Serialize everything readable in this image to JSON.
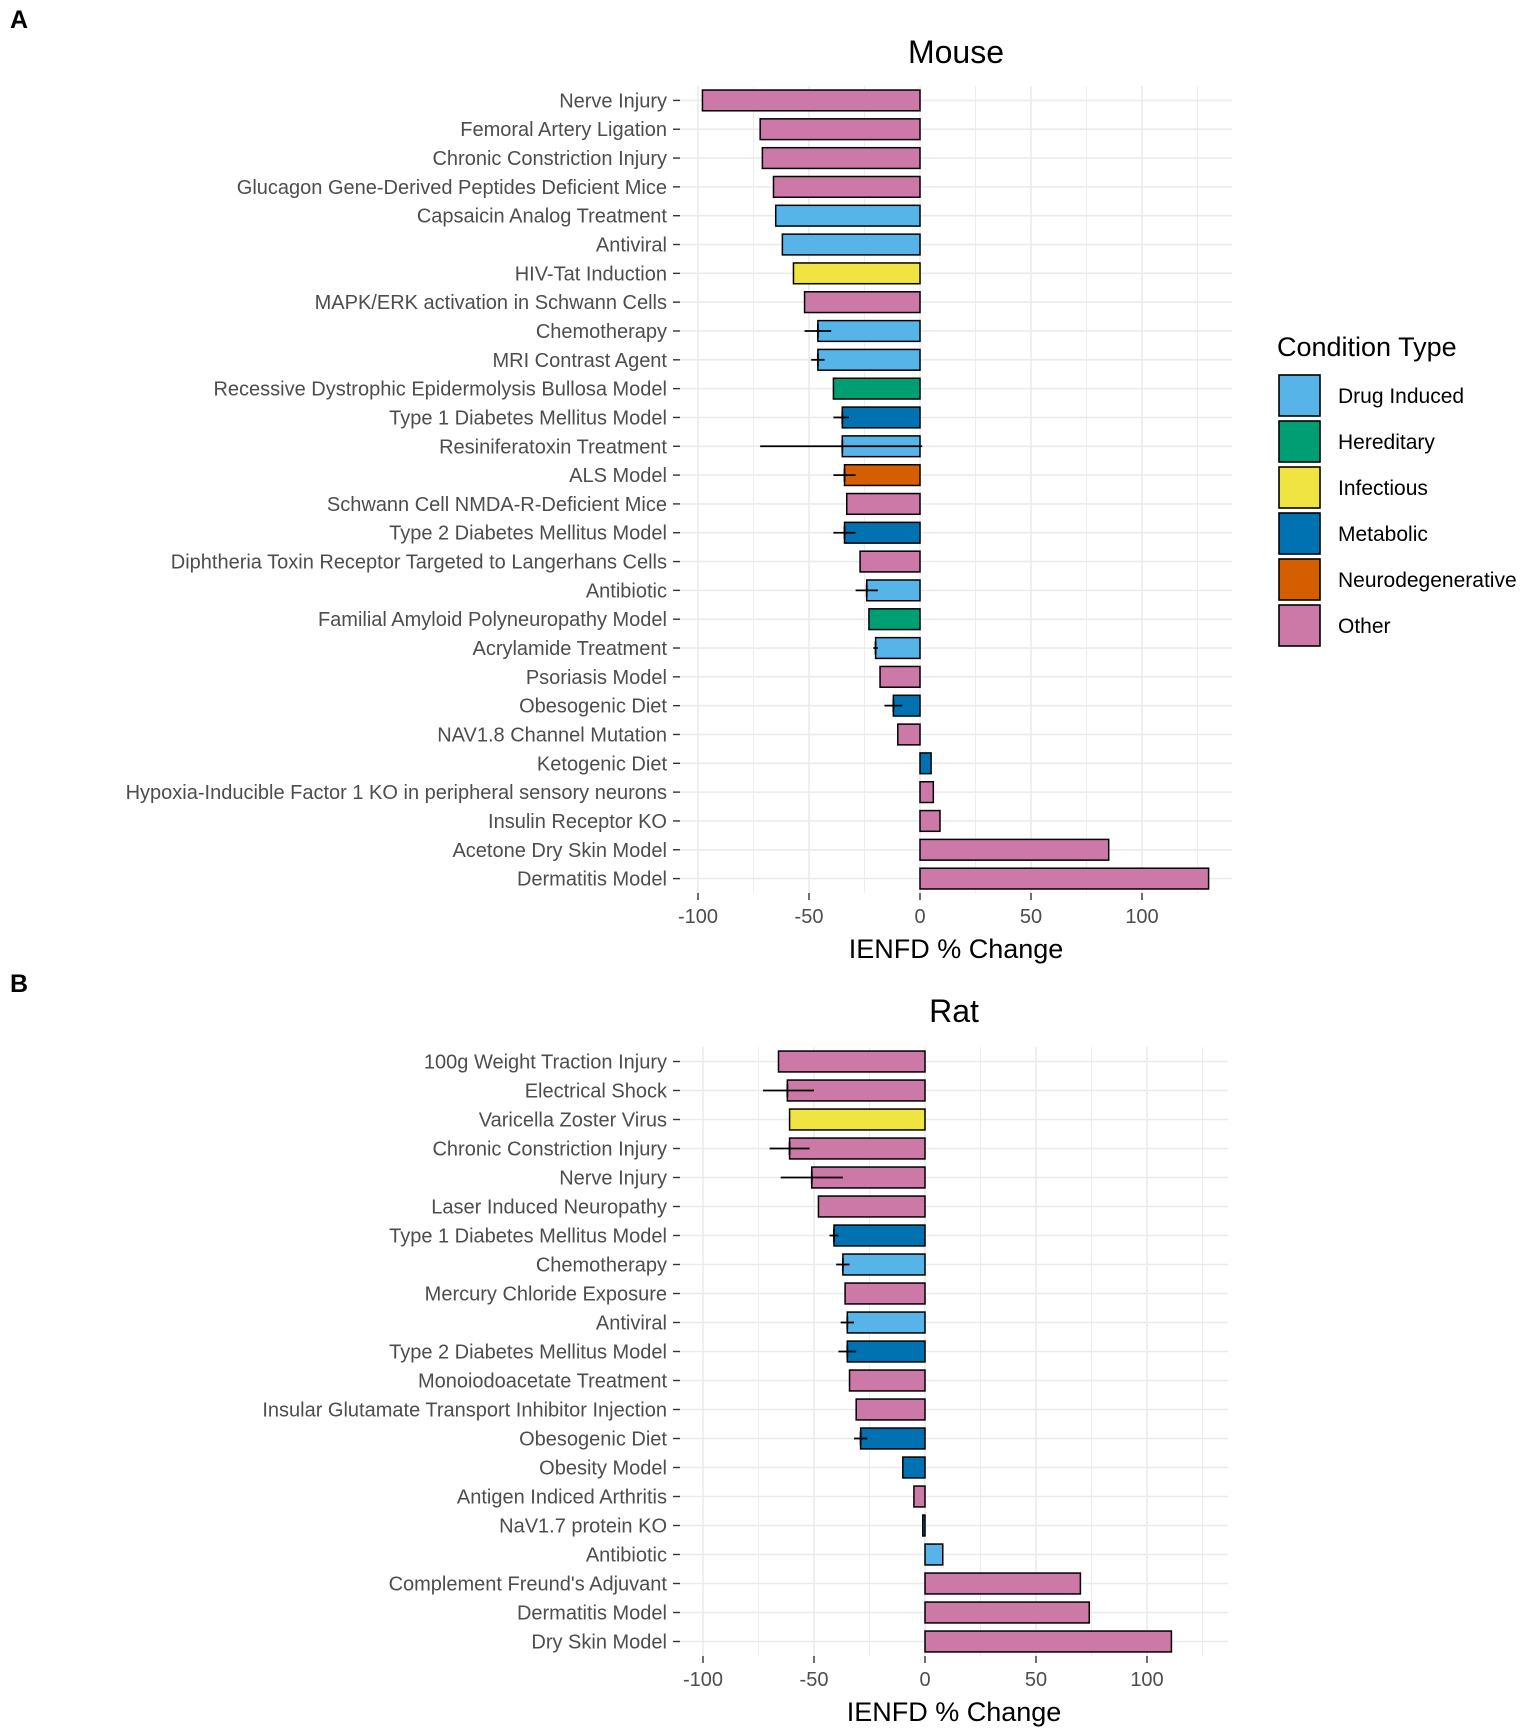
{
  "legend": {
    "title": "Condition Type",
    "items": [
      {
        "label": "Drug Induced",
        "color": "#56B4E9"
      },
      {
        "label": "Hereditary",
        "color": "#009E73"
      },
      {
        "label": "Infectious",
        "color": "#F0E442"
      },
      {
        "label": "Metabolic",
        "color": "#0072B2"
      },
      {
        "label": "Neurodegenerative",
        "color": "#D55E00"
      },
      {
        "label": "Other",
        "color": "#CC79A7"
      }
    ]
  },
  "chart_data": [
    {
      "panel_label": "A",
      "type": "bar",
      "orientation": "horizontal",
      "title": "Mouse",
      "xlabel": "IENFD % Change",
      "ylabel": "",
      "xlim": [
        -103,
        141
      ],
      "xticks": [
        -100,
        -50,
        0,
        50,
        100
      ],
      "grid": true,
      "legend_position": "right",
      "categories": [
        "Nerve Injury",
        "Femoral Artery Ligation",
        "Chronic Constriction Injury",
        "Glucagon Gene-Derived Peptides Deficient Mice",
        "Capsaicin Analog Treatment",
        "Antiviral",
        "HIV-Tat Induction",
        "MAPK/ERK activation in Schwann Cells",
        "Chemotherapy",
        "MRI Contrast Agent",
        "Recessive Dystrophic Epidermolysis Bullosa Model",
        "Type 1 Diabetes Mellitus Model",
        "Resiniferatoxin Treatment",
        "ALS Model",
        "Schwann Cell NMDA-R-Deficient Mice",
        "Type 2 Diabetes Mellitus Model",
        "Diphtheria Toxin Receptor Targeted to Langerhans Cells",
        "Antibiotic",
        "Familial Amyloid Polyneuropathy Model",
        "Acrylamide Treatment",
        "Psoriasis Model",
        "Obesogenic Diet",
        "NAV1.8 Channel Mutation",
        "Ketogenic Diet",
        "Hypoxia-Inducible Factor 1 KO in peripheral sensory neurons",
        "Insulin Receptor KO",
        "Acetone Dry Skin Model",
        "Dermatitis Model"
      ],
      "values": [
        -98,
        -72,
        -71,
        -66,
        -65,
        -62,
        -57,
        -52,
        -46,
        -46,
        -39,
        -35,
        -35,
        -34,
        -33,
        -34,
        -27,
        -24,
        -23,
        -20,
        -18,
        -12,
        -10,
        5,
        6,
        9,
        85,
        130
      ],
      "condition_types": [
        "Other",
        "Other",
        "Other",
        "Other",
        "Drug Induced",
        "Drug Induced",
        "Infectious",
        "Other",
        "Drug Induced",
        "Drug Induced",
        "Hereditary",
        "Metabolic",
        "Drug Induced",
        "Neurodegenerative",
        "Other",
        "Metabolic",
        "Other",
        "Drug Induced",
        "Hereditary",
        "Drug Induced",
        "Other",
        "Metabolic",
        "Other",
        "Metabolic",
        "Other",
        "Other",
        "Other",
        "Other"
      ],
      "error_bars": [
        null,
        null,
        null,
        null,
        null,
        null,
        null,
        null,
        [
          -52,
          -40
        ],
        [
          -49,
          -43
        ],
        null,
        [
          -39,
          -32
        ],
        [
          -72,
          1
        ],
        [
          -39,
          -29
        ],
        null,
        [
          -39,
          -29
        ],
        null,
        [
          -29,
          -19
        ],
        null,
        [
          -21,
          -19
        ],
        null,
        [
          -16,
          -8
        ],
        null,
        null,
        null,
        null,
        null,
        null
      ]
    },
    {
      "panel_label": "B",
      "type": "bar",
      "orientation": "horizontal",
      "title": "Rat",
      "xlabel": "IENFD % Change",
      "ylabel": "",
      "xlim": [
        -103,
        137
      ],
      "xticks": [
        -100,
        -50,
        0,
        50,
        100
      ],
      "grid": true,
      "categories": [
        "100g Weight Traction Injury",
        "Electrical Shock",
        "Varicella Zoster Virus",
        "Chronic Constriction Injury",
        "Nerve Injury",
        "Laser Induced Neuropathy",
        "Type 1 Diabetes Mellitus Model",
        "Chemotherapy",
        "Mercury Chloride Exposure",
        "Antiviral",
        "Type 2 Diabetes Mellitus Model",
        "Monoiodoacetate Treatment",
        "Insular Glutamate Transport Inhibitor Injection",
        "Obesogenic Diet",
        "Obesity Model",
        "Antigen Indiced Arthritis",
        "NaV1.7 protein KO",
        "Antibiotic",
        "Complement Freund's Adjuvant",
        "Dermatitis Model",
        "Dry Skin Model"
      ],
      "values": [
        -66,
        -62,
        -61,
        -61,
        -51,
        -48,
        -41,
        -37,
        -36,
        -35,
        -35,
        -34,
        -31,
        -29,
        -10,
        -5,
        -1,
        8,
        70,
        74,
        111
      ],
      "condition_types": [
        "Other",
        "Other",
        "Infectious",
        "Other",
        "Other",
        "Other",
        "Metabolic",
        "Drug Induced",
        "Other",
        "Drug Induced",
        "Metabolic",
        "Other",
        "Other",
        "Metabolic",
        "Metabolic",
        "Other",
        "Metabolic",
        "Drug Induced",
        "Other",
        "Other",
        "Other"
      ],
      "error_bars": [
        null,
        [
          -73,
          -50
        ],
        null,
        [
          -70,
          -52
        ],
        [
          -65,
          -37
        ],
        null,
        [
          -43,
          -39
        ],
        [
          -40,
          -34
        ],
        null,
        [
          -38,
          -32
        ],
        [
          -39,
          -31
        ],
        null,
        null,
        [
          -32,
          -26
        ],
        null,
        null,
        null,
        null,
        null,
        null,
        null
      ]
    }
  ]
}
